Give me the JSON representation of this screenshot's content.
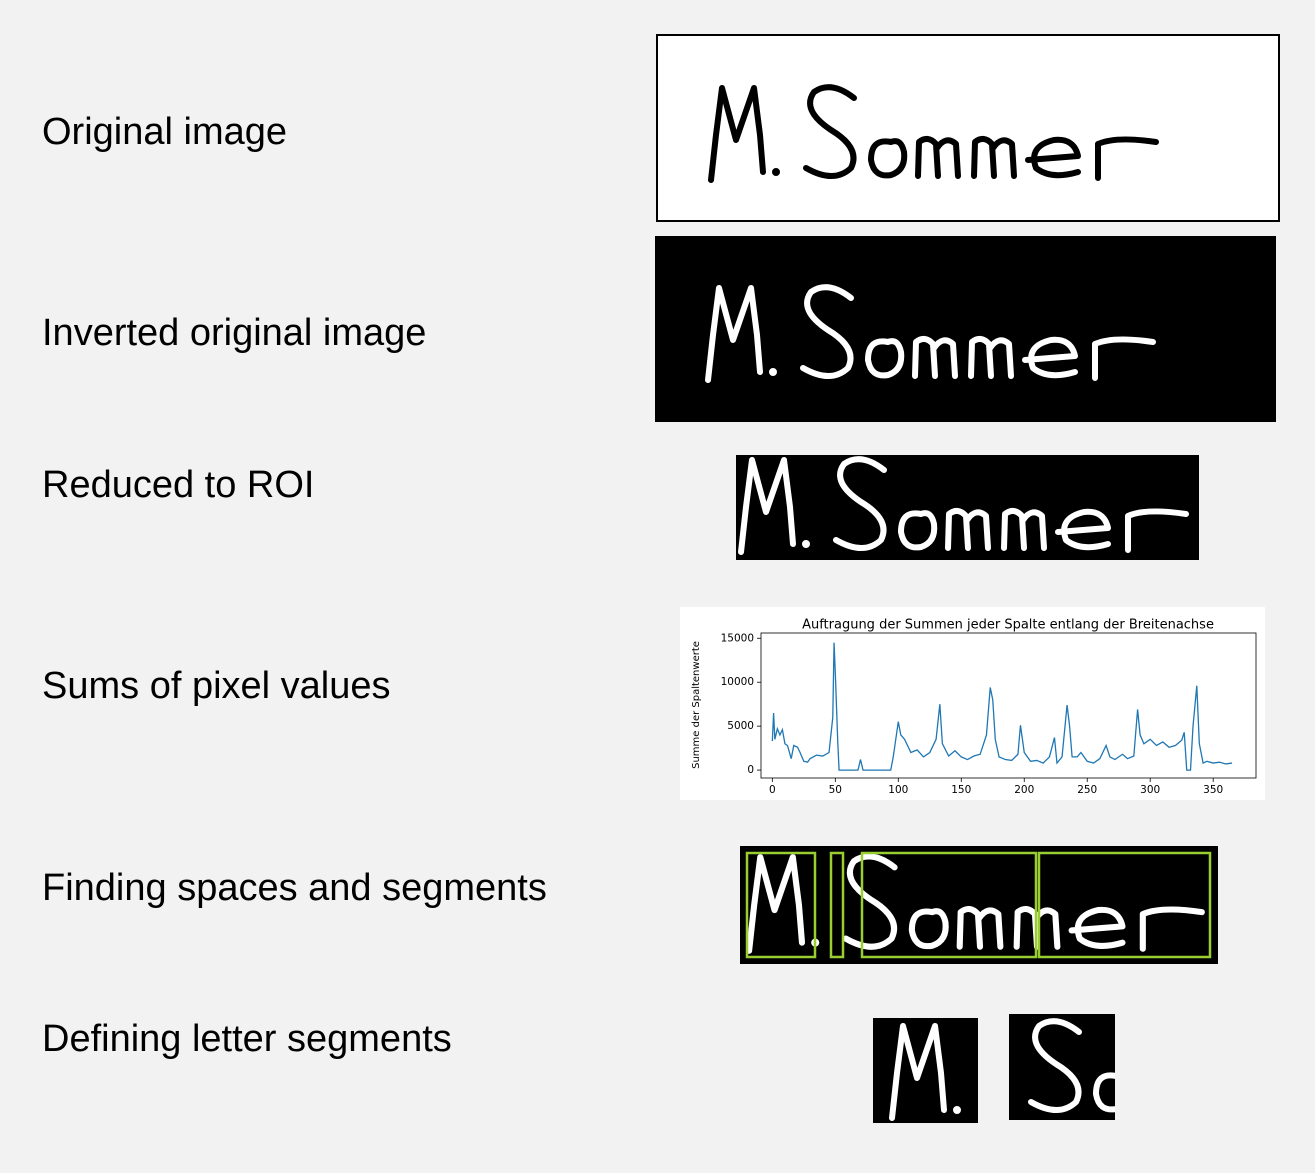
{
  "rows": [
    {
      "label": "Original image"
    },
    {
      "label": "Inverted original image"
    },
    {
      "label": "Reduced to ROI"
    },
    {
      "label": "Sums of pixel values"
    },
    {
      "label": "Finding spaces and segments"
    },
    {
      "label": "Defining letter segments"
    }
  ],
  "chart_data": {
    "type": "line",
    "title": "Auftragung der Summen jeder Spalte entlang der Breitenachse",
    "y_label": "Summe der Spaltenwerte",
    "x": [
      0,
      1,
      2,
      4,
      6,
      8,
      10,
      12,
      15,
      17,
      20,
      22,
      25,
      28,
      30,
      35,
      40,
      45,
      48,
      49,
      50,
      52,
      53,
      60,
      68,
      70,
      72,
      80,
      90,
      94,
      96,
      98,
      100,
      102,
      105,
      110,
      115,
      120,
      125,
      130,
      133,
      135,
      140,
      145,
      150,
      155,
      160,
      165,
      170,
      173,
      175,
      177,
      180,
      185,
      190,
      195,
      197,
      200,
      205,
      210,
      215,
      220,
      224,
      226,
      230,
      234,
      236,
      238,
      242,
      245,
      250,
      255,
      260,
      265,
      268,
      272,
      278,
      282,
      287,
      290,
      292,
      295,
      300,
      305,
      310,
      315,
      320,
      325,
      327,
      329,
      332,
      334,
      337,
      339,
      342,
      345,
      350,
      355,
      360,
      365
    ],
    "series": [
      {
        "color": "#1f77b4",
        "values": [
          3300,
          6500,
          3500,
          4700,
          4000,
          4600,
          3000,
          2800,
          1300,
          2800,
          2600,
          2000,
          1000,
          900,
          1300,
          1700,
          1600,
          2000,
          6000,
          14500,
          11000,
          3000,
          0,
          0,
          0,
          1200,
          0,
          0,
          0,
          0,
          1500,
          3500,
          5500,
          4000,
          3500,
          2000,
          2300,
          1500,
          2000,
          3500,
          7500,
          3000,
          1600,
          2200,
          1500,
          1200,
          1600,
          1800,
          4000,
          9400,
          8000,
          3500,
          1500,
          1200,
          1100,
          1800,
          5100,
          2000,
          1000,
          1100,
          800,
          1500,
          3700,
          800,
          1500,
          7400,
          5000,
          1500,
          1500,
          2000,
          1000,
          800,
          1300,
          2800,
          1500,
          1200,
          1800,
          1300,
          1600,
          6900,
          4000,
          3000,
          3500,
          2800,
          3200,
          2600,
          2800,
          3400,
          4300,
          0,
          0,
          5000,
          9600,
          3000,
          800,
          1000,
          800,
          900,
          700,
          800
        ]
      }
    ],
    "xlim": [
      -9,
      384
    ],
    "ylim": [
      -900,
      15600
    ],
    "xticks": [
      0,
      50,
      100,
      150,
      200,
      250,
      300,
      350
    ],
    "yticks": [
      0,
      5000,
      10000,
      15000
    ]
  }
}
